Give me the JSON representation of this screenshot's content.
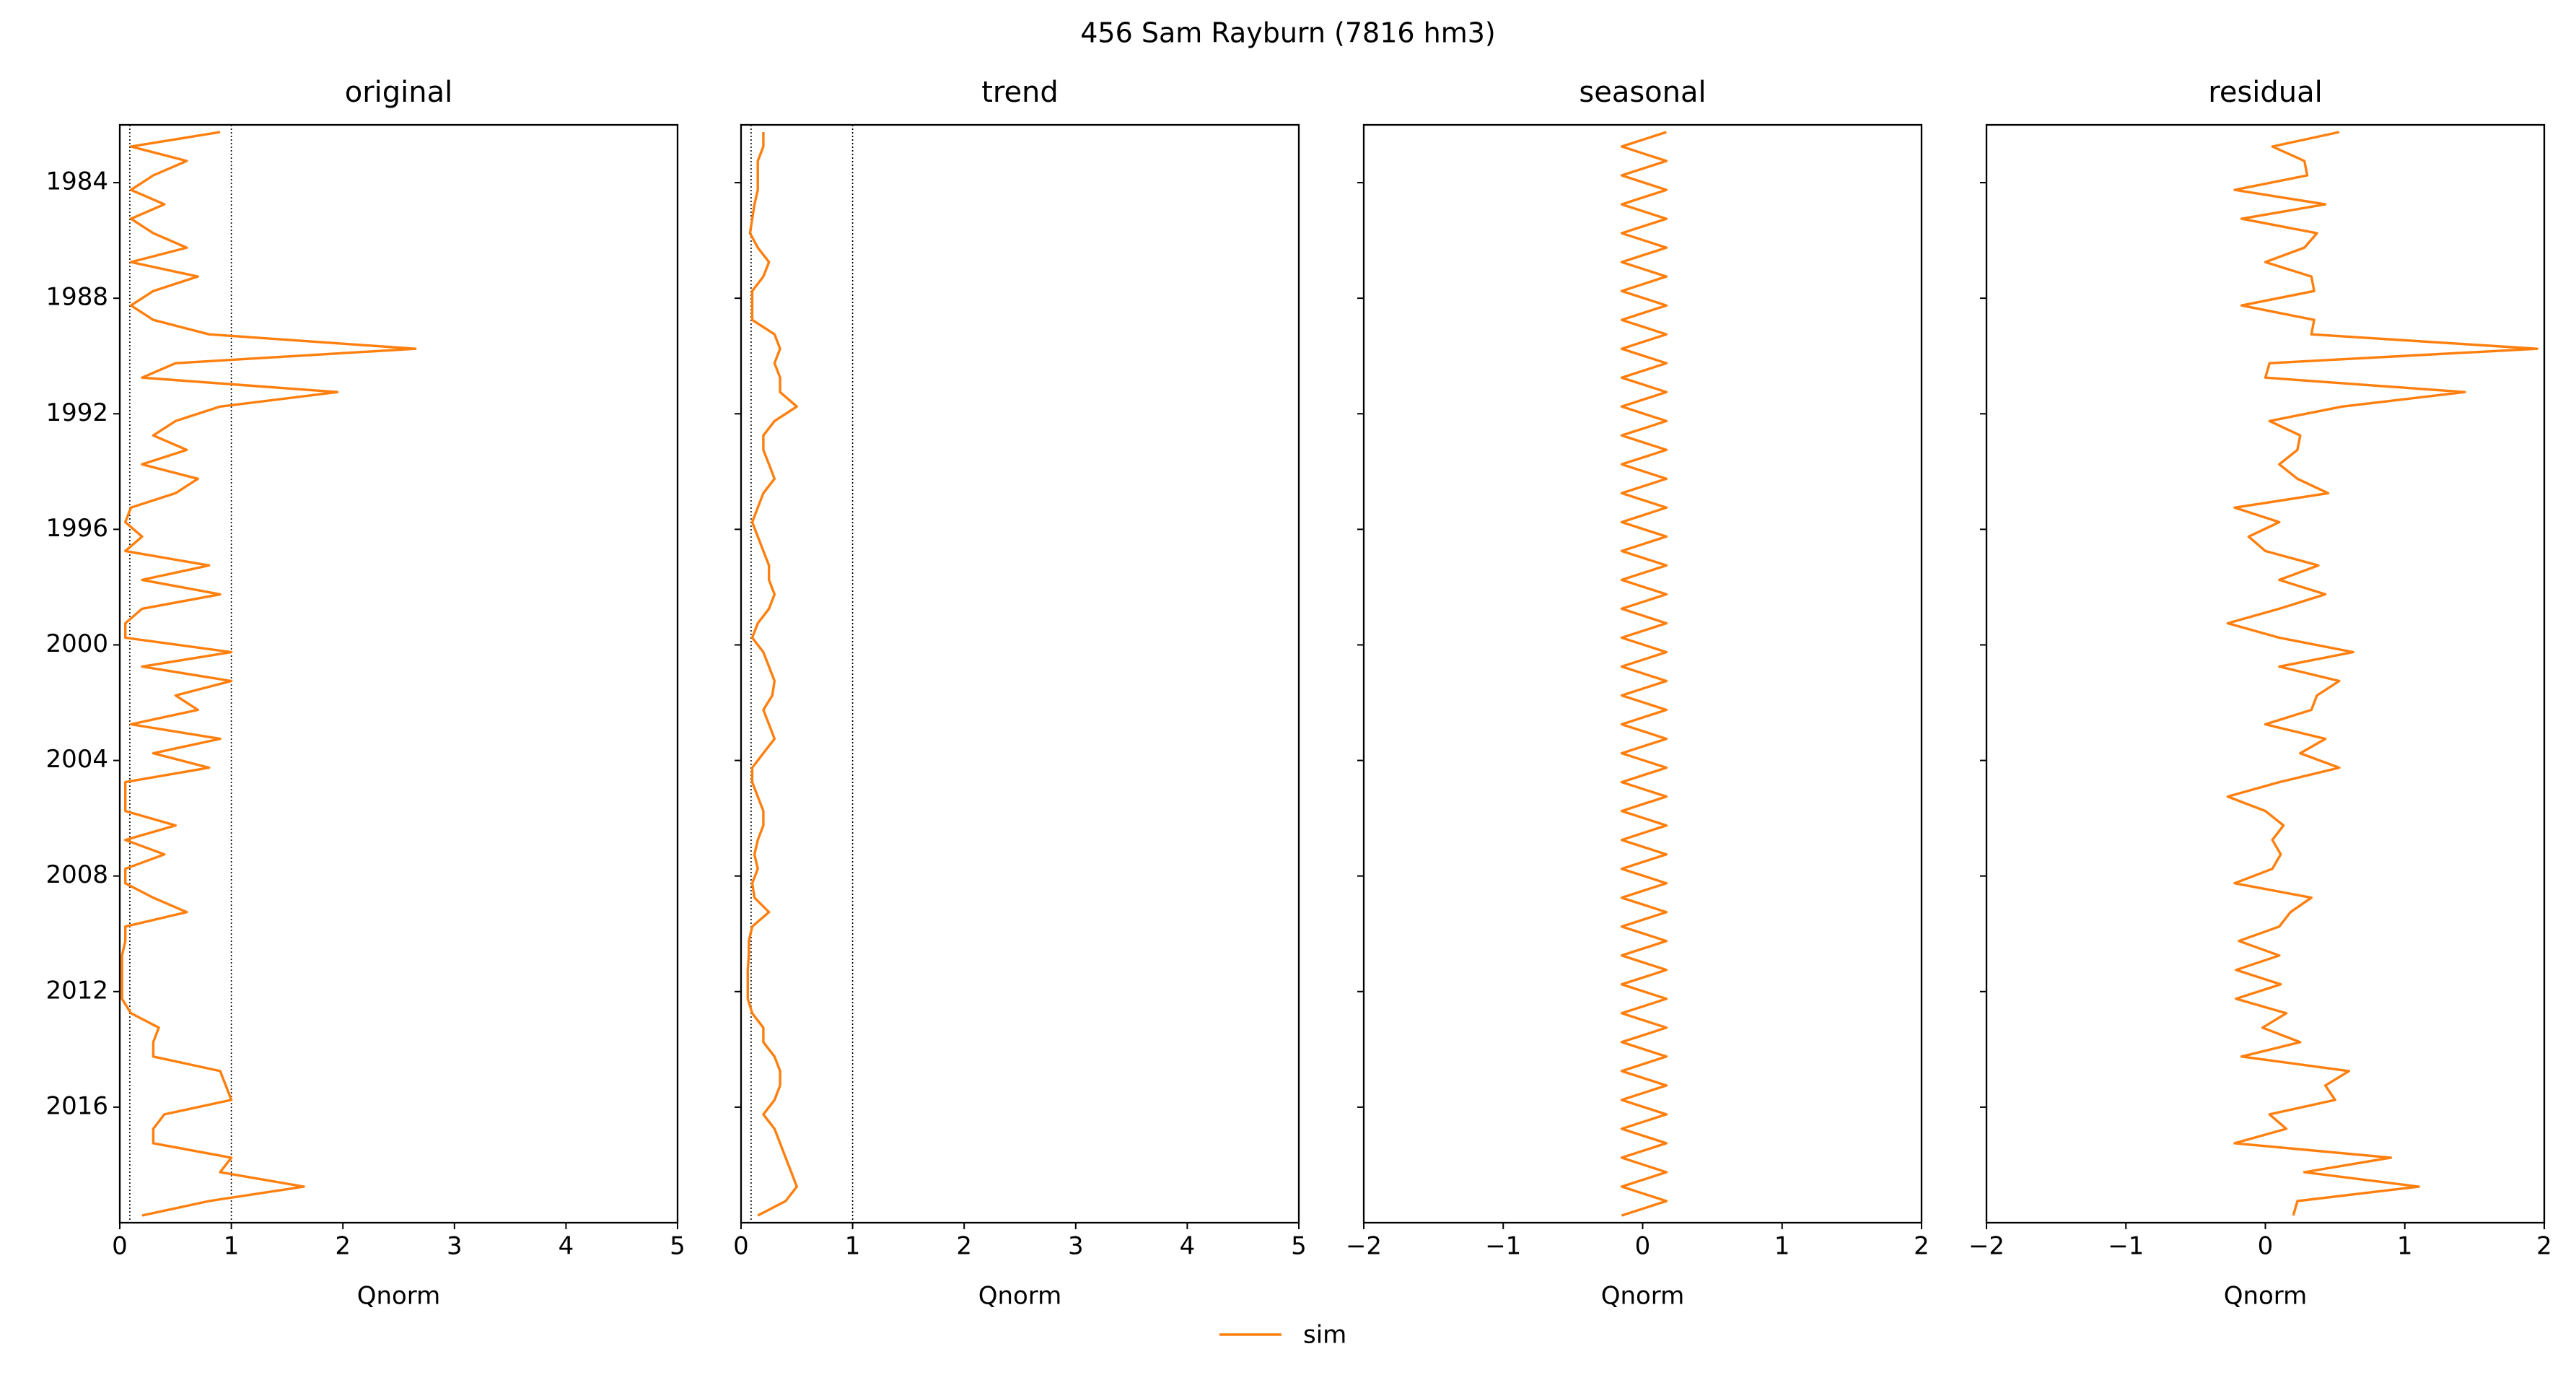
{
  "title": "456  Sam Rayburn (7816 hm3)",
  "legend": "lower center",
  "chart_data": [
    {
      "type": "line",
      "title": "original",
      "xlabel": "Qnorm",
      "y": [
        1982.25,
        1982.75,
        1983.25,
        1983.75,
        1984.25,
        1984.75,
        1985.25,
        1985.75,
        1986.25,
        1986.75,
        1987.25,
        1987.75,
        1988.25,
        1988.75,
        1989.25,
        1989.75,
        1990.25,
        1990.75,
        1991.25,
        1991.75,
        1992.25,
        1992.75,
        1993.25,
        1993.75,
        1994.25,
        1994.75,
        1995.25,
        1995.75,
        1996.25,
        1996.75,
        1997.25,
        1997.75,
        1998.25,
        1998.75,
        1999.25,
        1999.75,
        2000.25,
        2000.75,
        2001.25,
        2001.75,
        2002.25,
        2002.75,
        2003.25,
        2003.75,
        2004.25,
        2004.75,
        2005.25,
        2005.75,
        2006.25,
        2006.75,
        2007.25,
        2007.75,
        2008.25,
        2008.75,
        2009.25,
        2009.75,
        2010.25,
        2010.75,
        2011.25,
        2011.75,
        2012.25,
        2012.75,
        2013.25,
        2013.75,
        2014.25,
        2014.75,
        2015.25,
        2015.75,
        2016.25,
        2016.75,
        2017.25,
        2017.75,
        2018.25,
        2018.75,
        2019.25,
        2019.75
      ],
      "series": [
        {
          "name": "sim",
          "color": "#ff7f0e",
          "values": [
            0.9,
            0.1,
            0.6,
            0.3,
            0.1,
            0.4,
            0.1,
            0.3,
            0.6,
            0.1,
            0.7,
            0.3,
            0.1,
            0.3,
            0.8,
            2.65,
            0.5,
            0.2,
            1.95,
            0.9,
            0.5,
            0.3,
            0.6,
            0.2,
            0.7,
            0.5,
            0.1,
            0.05,
            0.2,
            0.05,
            0.8,
            0.2,
            0.9,
            0.2,
            0.05,
            0.05,
            1.0,
            0.2,
            1.0,
            0.5,
            0.7,
            0.1,
            0.9,
            0.3,
            0.8,
            0.05,
            0.05,
            0.05,
            0.5,
            0.05,
            0.4,
            0.05,
            0.05,
            0.3,
            0.6,
            0.05,
            0.05,
            0.02,
            0.02,
            0.02,
            0.02,
            0.1,
            0.35,
            0.3,
            0.3,
            0.9,
            0.95,
            1.0,
            0.4,
            0.3,
            0.3,
            1.0,
            0.9,
            1.65,
            0.8,
            0.2
          ]
        }
      ],
      "vlines": [
        0.09,
        1
      ],
      "xlim": [
        0,
        5
      ],
      "xticks": [
        0,
        1,
        2,
        3,
        4,
        5
      ],
      "ylim": [
        1982,
        2020
      ],
      "invert_y": true,
      "show_ytick_labels": true,
      "yticks": [
        1984,
        1988,
        1992,
        1996,
        2000,
        2004,
        2008,
        2012,
        2016
      ]
    },
    {
      "type": "line",
      "title": "trend",
      "xlabel": "Qnorm",
      "y": [
        1982.25,
        1982.75,
        1983.25,
        1983.75,
        1984.25,
        1984.75,
        1985.25,
        1985.75,
        1986.25,
        1986.75,
        1987.25,
        1987.75,
        1988.25,
        1988.75,
        1989.25,
        1989.75,
        1990.25,
        1990.75,
        1991.25,
        1991.75,
        1992.25,
        1992.75,
        1993.25,
        1993.75,
        1994.25,
        1994.75,
        1995.25,
        1995.75,
        1996.25,
        1996.75,
        1997.25,
        1997.75,
        1998.25,
        1998.75,
        1999.25,
        1999.75,
        2000.25,
        2000.75,
        2001.25,
        2001.75,
        2002.25,
        2002.75,
        2003.25,
        2003.75,
        2004.25,
        2004.75,
        2005.25,
        2005.75,
        2006.25,
        2006.75,
        2007.25,
        2007.75,
        2008.25,
        2008.75,
        2009.25,
        2009.75,
        2010.25,
        2010.75,
        2011.25,
        2011.75,
        2012.25,
        2012.75,
        2013.25,
        2013.75,
        2014.25,
        2014.75,
        2015.25,
        2015.75,
        2016.25,
        2016.75,
        2017.25,
        2017.75,
        2018.25,
        2018.75,
        2019.25,
        2019.75
      ],
      "series": [
        {
          "color": "#ff7f0e",
          "values": [
            0.2,
            0.2,
            0.15,
            0.15,
            0.15,
            0.12,
            0.1,
            0.08,
            0.15,
            0.25,
            0.2,
            0.1,
            0.1,
            0.1,
            0.3,
            0.35,
            0.3,
            0.35,
            0.35,
            0.5,
            0.3,
            0.2,
            0.2,
            0.25,
            0.3,
            0.2,
            0.15,
            0.1,
            0.15,
            0.2,
            0.25,
            0.25,
            0.3,
            0.25,
            0.15,
            0.1,
            0.2,
            0.25,
            0.3,
            0.28,
            0.2,
            0.25,
            0.3,
            0.2,
            0.1,
            0.1,
            0.15,
            0.2,
            0.2,
            0.15,
            0.12,
            0.15,
            0.1,
            0.12,
            0.25,
            0.1,
            0.07,
            0.07,
            0.06,
            0.06,
            0.06,
            0.1,
            0.2,
            0.2,
            0.3,
            0.35,
            0.35,
            0.3,
            0.2,
            0.3,
            0.35,
            0.4,
            0.45,
            0.5,
            0.4,
            0.15
          ]
        }
      ],
      "vlines": [
        0.09,
        1
      ],
      "xlim": [
        0,
        5
      ],
      "xticks": [
        0,
        1,
        2,
        3,
        4,
        5
      ],
      "ylim": [
        1982,
        2020
      ],
      "invert_y": true,
      "show_ytick_labels": false,
      "yticks": [
        1984,
        1988,
        1992,
        1996,
        2000,
        2004,
        2008,
        2012,
        2016
      ]
    },
    {
      "type": "line",
      "title": "seasonal",
      "xlabel": "Qnorm",
      "y": [
        1982.25,
        1982.75,
        1983.25,
        1983.75,
        1984.25,
        1984.75,
        1985.25,
        1985.75,
        1986.25,
        1986.75,
        1987.25,
        1987.75,
        1988.25,
        1988.75,
        1989.25,
        1989.75,
        1990.25,
        1990.75,
        1991.25,
        1991.75,
        1992.25,
        1992.75,
        1993.25,
        1993.75,
        1994.25,
        1994.75,
        1995.25,
        1995.75,
        1996.25,
        1996.75,
        1997.25,
        1997.75,
        1998.25,
        1998.75,
        1999.25,
        1999.75,
        2000.25,
        2000.75,
        2001.25,
        2001.75,
        2002.25,
        2002.75,
        2003.25,
        2003.75,
        2004.25,
        2004.75,
        2005.25,
        2005.75,
        2006.25,
        2006.75,
        2007.25,
        2007.75,
        2008.25,
        2008.75,
        2009.25,
        2009.75,
        2010.25,
        2010.75,
        2011.25,
        2011.75,
        2012.25,
        2012.75,
        2013.25,
        2013.75,
        2014.25,
        2014.75,
        2015.25,
        2015.75,
        2016.25,
        2016.75,
        2017.25,
        2017.75,
        2018.25,
        2018.75,
        2019.25,
        2019.75
      ],
      "series": [
        {
          "color": "#ff7f0e",
          "values": [
            0.17,
            -0.15,
            0.17,
            -0.15,
            0.17,
            -0.15,
            0.17,
            -0.15,
            0.17,
            -0.15,
            0.17,
            -0.15,
            0.17,
            -0.15,
            0.17,
            -0.15,
            0.17,
            -0.15,
            0.17,
            -0.15,
            0.17,
            -0.15,
            0.17,
            -0.15,
            0.17,
            -0.15,
            0.17,
            -0.15,
            0.17,
            -0.15,
            0.17,
            -0.15,
            0.17,
            -0.15,
            0.17,
            -0.15,
            0.17,
            -0.15,
            0.17,
            -0.15,
            0.17,
            -0.15,
            0.17,
            -0.15,
            0.17,
            -0.15,
            0.17,
            -0.15,
            0.17,
            -0.15,
            0.17,
            -0.15,
            0.17,
            -0.15,
            0.17,
            -0.15,
            0.17,
            -0.15,
            0.17,
            -0.15,
            0.17,
            -0.15,
            0.17,
            -0.15,
            0.17,
            -0.15,
            0.17,
            -0.15,
            0.17,
            -0.15,
            0.17,
            -0.15,
            0.17,
            -0.15,
            0.17,
            -0.15
          ]
        }
      ],
      "xlim": [
        -2,
        2
      ],
      "xticks": [
        {
          "value": -2,
          "label": "−2"
        },
        {
          "value": -1,
          "label": "−1"
        },
        0,
        1,
        2
      ],
      "ylim": [
        1982,
        2020
      ],
      "invert_y": true,
      "show_ytick_labels": false,
      "yticks": [
        1984,
        1988,
        1992,
        1996,
        2000,
        2004,
        2008,
        2012,
        2016
      ]
    },
    {
      "type": "line",
      "title": "residual",
      "xlabel": "Qnorm",
      "y": [
        1982.25,
        1982.75,
        1983.25,
        1983.75,
        1984.25,
        1984.75,
        1985.25,
        1985.75,
        1986.25,
        1986.75,
        1987.25,
        1987.75,
        1988.25,
        1988.75,
        1989.25,
        1989.75,
        1990.25,
        1990.75,
        1991.25,
        1991.75,
        1992.25,
        1992.75,
        1993.25,
        1993.75,
        1994.25,
        1994.75,
        1995.25,
        1995.75,
        1996.25,
        1996.75,
        1997.25,
        1997.75,
        1998.25,
        1998.75,
        1999.25,
        1999.75,
        2000.25,
        2000.75,
        2001.25,
        2001.75,
        2002.25,
        2002.75,
        2003.25,
        2003.75,
        2004.25,
        2004.75,
        2005.25,
        2005.75,
        2006.25,
        2006.75,
        2007.25,
        2007.75,
        2008.25,
        2008.75,
        2009.25,
        2009.75,
        2010.25,
        2010.75,
        2011.25,
        2011.75,
        2012.25,
        2012.75,
        2013.25,
        2013.75,
        2014.25,
        2014.75,
        2015.25,
        2015.75,
        2016.25,
        2016.75,
        2017.25,
        2017.75,
        2018.25,
        2018.75,
        2019.25,
        2019.75
      ],
      "series": [
        {
          "color": "#ff7f0e",
          "values": [
            0.53,
            0.05,
            0.28,
            0.3,
            -0.22,
            0.43,
            -0.17,
            0.37,
            0.28,
            0,
            0.33,
            0.35,
            -0.17,
            0.35,
            0.33,
            1.95,
            0.03,
            0,
            1.43,
            0.55,
            0.03,
            0.25,
            0.23,
            0.1,
            0.23,
            0.45,
            -0.22,
            0.1,
            -0.12,
            0,
            0.38,
            0.1,
            0.43,
            0.1,
            -0.27,
            0.1,
            0.63,
            0.1,
            0.53,
            0.37,
            0.33,
            0,
            0.43,
            0.25,
            0.53,
            0.1,
            -0.27,
            0,
            0.13,
            0.05,
            0.11,
            0.05,
            -0.22,
            0.33,
            0.18,
            0.1,
            -0.19,
            0.1,
            -0.21,
            0.11,
            -0.21,
            0.15,
            -0.02,
            0.25,
            -0.17,
            0.6,
            0.43,
            0.5,
            0.03,
            0.15,
            -0.22,
            0.9,
            0.28,
            1.1,
            0.23,
            0.2
          ]
        }
      ],
      "xlim": [
        -2,
        2
      ],
      "xticks": [
        {
          "value": -2,
          "label": "−2"
        },
        {
          "value": -1,
          "label": "−1"
        },
        0,
        1,
        2
      ],
      "ylim": [
        1982,
        2020
      ],
      "invert_y": true,
      "show_ytick_labels": false,
      "yticks": [
        1984,
        1988,
        1992,
        1996,
        2000,
        2004,
        2008,
        2012,
        2016
      ]
    }
  ]
}
